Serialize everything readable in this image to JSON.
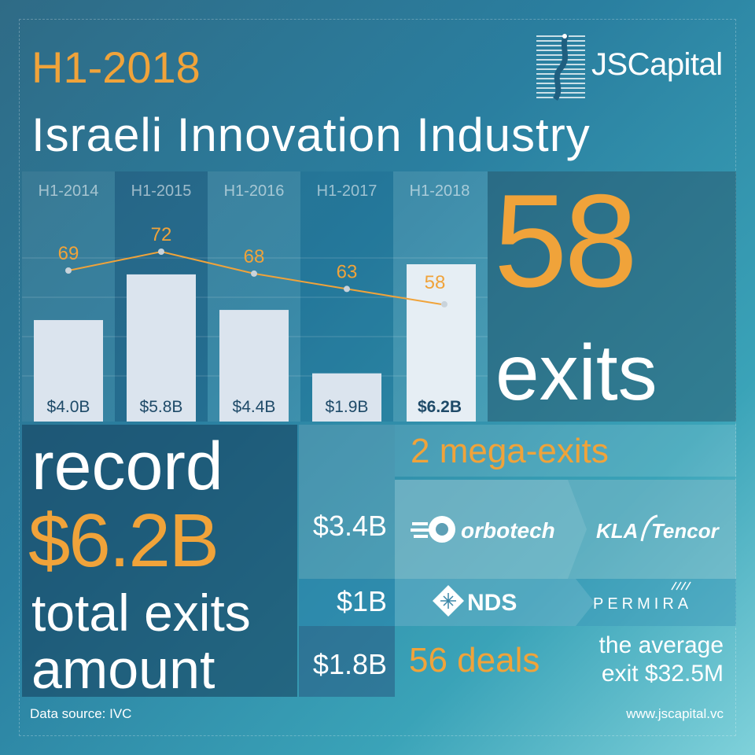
{
  "header": {
    "year": "H1-2018",
    "title": "Israeli Innovation Industry",
    "brand": "JSCapital"
  },
  "colors": {
    "accent": "#f0a33a",
    "bar": "#dbe4ee",
    "bar_highlight": "#e6eef4",
    "text": "#ffffff",
    "bar_text": "#1e4a68"
  },
  "chart_data": {
    "type": "bar",
    "categories": [
      "H1-2014",
      "H1-2015",
      "H1-2016",
      "H1-2017",
      "H1-2018"
    ],
    "series": [
      {
        "values": [
          4.0,
          5.8,
          4.4,
          1.9,
          6.2
        ],
        "labels": [
          "$4.0B",
          "$5.8B",
          "$4.4B",
          "$1.9B",
          "$6.2B"
        ]
      },
      {
        "values": [
          69,
          72,
          68,
          63,
          58
        ],
        "type": "line"
      }
    ],
    "ylim_bars": [
      0,
      8
    ],
    "ylim_line": [
      0,
      100
    ]
  },
  "exits": {
    "count": "58",
    "label": "exits"
  },
  "record": {
    "line1": "record",
    "amount": "$6.2B",
    "line3": "total exits",
    "line4": "amount"
  },
  "breakdown": {
    "mega_title": "2 mega-exits",
    "values": [
      "$3.4B",
      "$1B",
      "$1.8B"
    ],
    "logos": [
      "orbotech",
      "KLA Tencor",
      "NDS",
      "PERMIRA"
    ],
    "deals": "56 deals",
    "average_line1": "the average",
    "average_line2": "exit $32.5M"
  },
  "footer": {
    "source": "Data source: IVC",
    "url": "www.jscapital.vc"
  },
  "icons": [
    "jscapital-logo-icon",
    "orbotech-logo-icon",
    "kla-tencor-logo-icon",
    "nds-logo-icon",
    "permira-logo-icon"
  ]
}
